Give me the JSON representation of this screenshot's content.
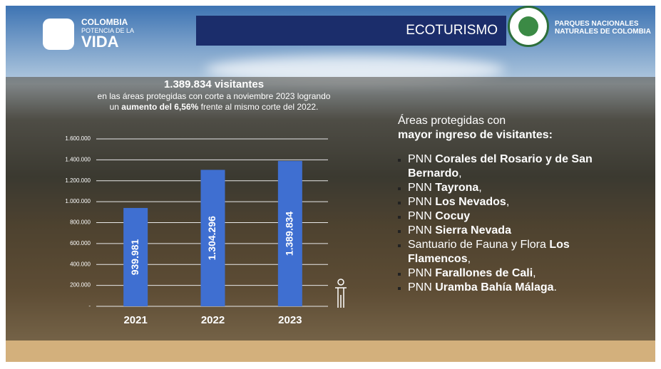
{
  "header": {
    "logo_lines": [
      "COLOMBIA",
      "POTENCIA DE LA",
      "VIDA"
    ],
    "section": "ECOTURISMO",
    "org_lines": [
      "PARQUES NACIONALES",
      "NATURALES DE COLOMBIA"
    ]
  },
  "chart_data": {
    "type": "bar",
    "title": "1.389.834 visitantes",
    "subtitle_parts": [
      "en las áreas protegidas con corte a noviembre 2023 logrando un ",
      "aumento del 6,56%",
      " frente al mismo corte del 2022."
    ],
    "categories": [
      "2021",
      "2022",
      "2023"
    ],
    "values": [
      939981,
      1304296,
      1389834
    ],
    "value_labels": [
      "939.981",
      "1.304.296",
      "1.389.834"
    ],
    "color": "#3f6fd1",
    "ylim": [
      0,
      1600000
    ],
    "yticks": [
      {
        "value": 0,
        "label": "-"
      },
      {
        "value": 200000,
        "label": "200.000"
      },
      {
        "value": 400000,
        "label": "400.000"
      },
      {
        "value": 600000,
        "label": "600.000"
      },
      {
        "value": 800000,
        "label": "800.000"
      },
      {
        "value": 1000000,
        "label": "1.000.000"
      },
      {
        "value": 1200000,
        "label": "1.200.000"
      },
      {
        "value": 1400000,
        "label": "1.400.000"
      },
      {
        "value": 1600000,
        "label": "1.600.000"
      }
    ],
    "grid": true
  },
  "areas": {
    "heading": "Áreas protegidas con",
    "heading_bold": "mayor ingreso de visitantes:",
    "items": [
      {
        "prefix": "PNN ",
        "name": "Corales del Rosario y de San Bernardo",
        "suffix": ","
      },
      {
        "prefix": "PNN ",
        "name": "Tayrona",
        "suffix": ","
      },
      {
        "prefix": "PNN ",
        "name": "Los Nevados",
        "suffix": ","
      },
      {
        "prefix": "PNN ",
        "name": "Cocuy",
        "suffix": ""
      },
      {
        "prefix": "PNN ",
        "name": "Sierra Nevada",
        "suffix": ""
      },
      {
        "prefix": "Santuario de Fauna y Flora ",
        "name": "Los Flamencos",
        "suffix": ","
      },
      {
        "prefix": "PNN ",
        "name": "Farallones de Cali",
        "suffix": ","
      },
      {
        "prefix": "PNN ",
        "name": "Uramba Bahía Málaga",
        "suffix": "."
      }
    ]
  }
}
